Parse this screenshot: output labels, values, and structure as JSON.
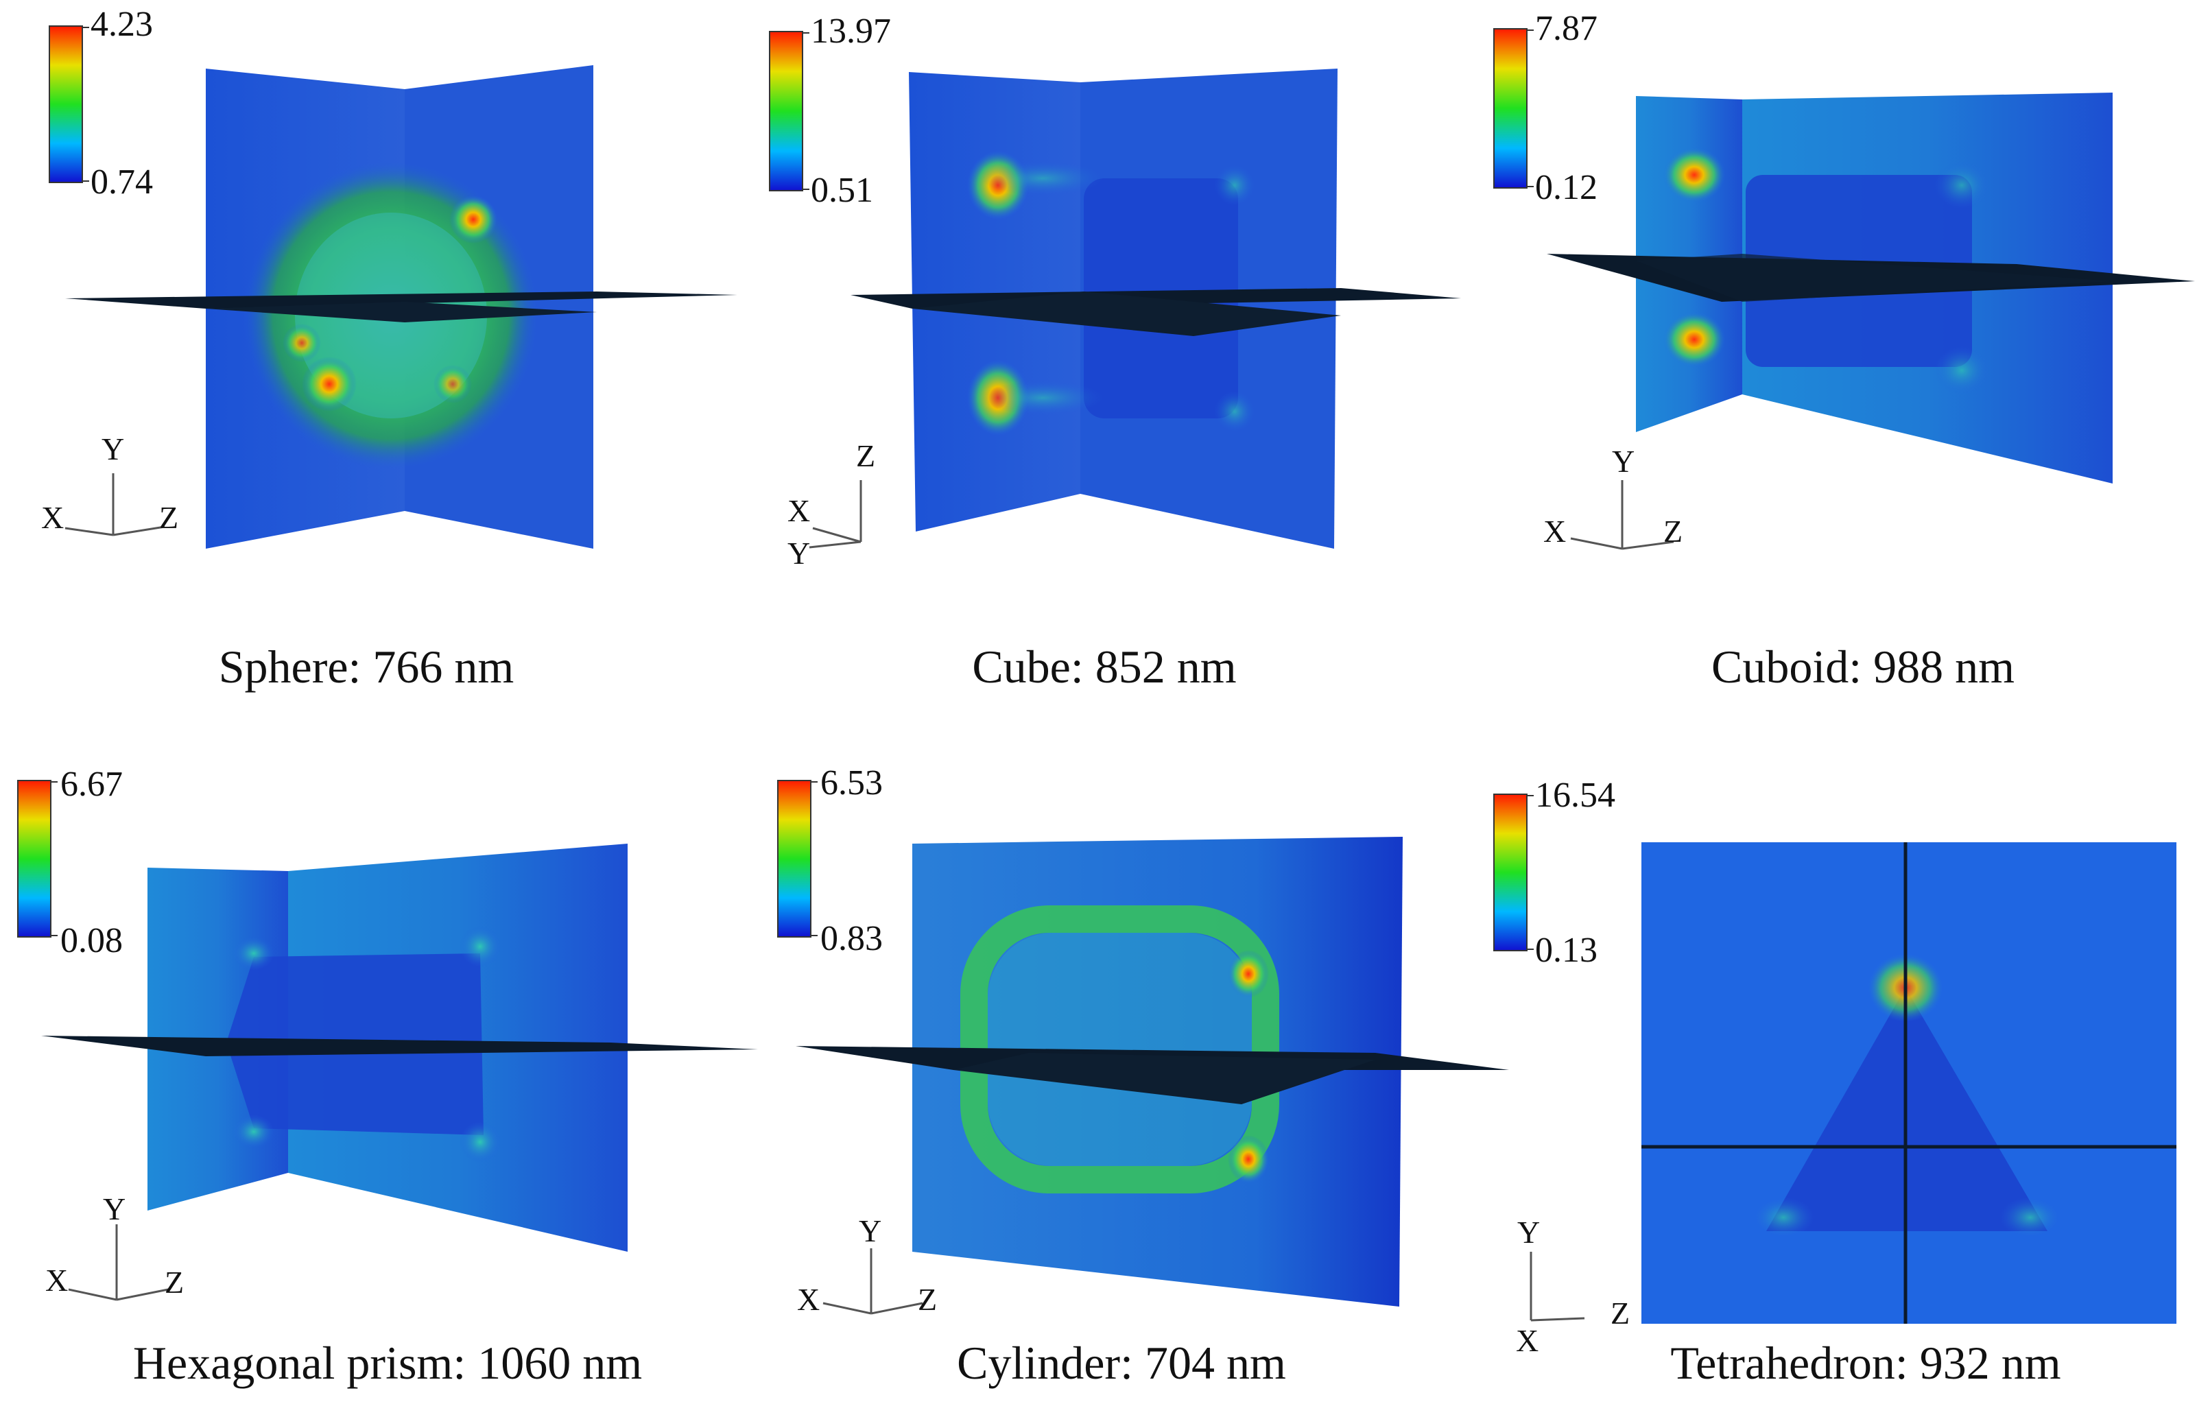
{
  "panels": [
    {
      "caption": "Sphere: 766 nm",
      "colorbar": {
        "max": "4.23",
        "min": "0.74"
      },
      "axes": [
        "Y",
        "X",
        "Z"
      ]
    },
    {
      "caption": "Cube:  852 nm",
      "colorbar": {
        "max": "13.97",
        "min": "0.51"
      },
      "axes": [
        "Z",
        "X",
        "Y"
      ]
    },
    {
      "caption": "Cuboid: 988 nm",
      "colorbar": {
        "max": "7.87",
        "min": "0.12"
      },
      "axes": [
        "Y",
        "X",
        "Z"
      ]
    },
    {
      "caption": "Hexagonal prism: 1060 nm",
      "colorbar": {
        "max": "6.67",
        "min": "0.08"
      },
      "axes": [
        "Y",
        "X",
        "Z"
      ]
    },
    {
      "caption": "Cylinder: 704 nm",
      "colorbar": {
        "max": "6.53",
        "min": "0.83"
      },
      "axes": [
        "Y",
        "X",
        "Z"
      ]
    },
    {
      "caption": "Tetrahedron: 932 nm",
      "colorbar": {
        "max": "16.54",
        "min": "0.13"
      },
      "axes": [
        "Y",
        "Z",
        "X"
      ]
    }
  ],
  "colors": {
    "field_low": "#1a3fd8",
    "field_mid": "#2bc46a",
    "field_high": "#e03a1e",
    "slice_plane": "#0b1a2b"
  }
}
